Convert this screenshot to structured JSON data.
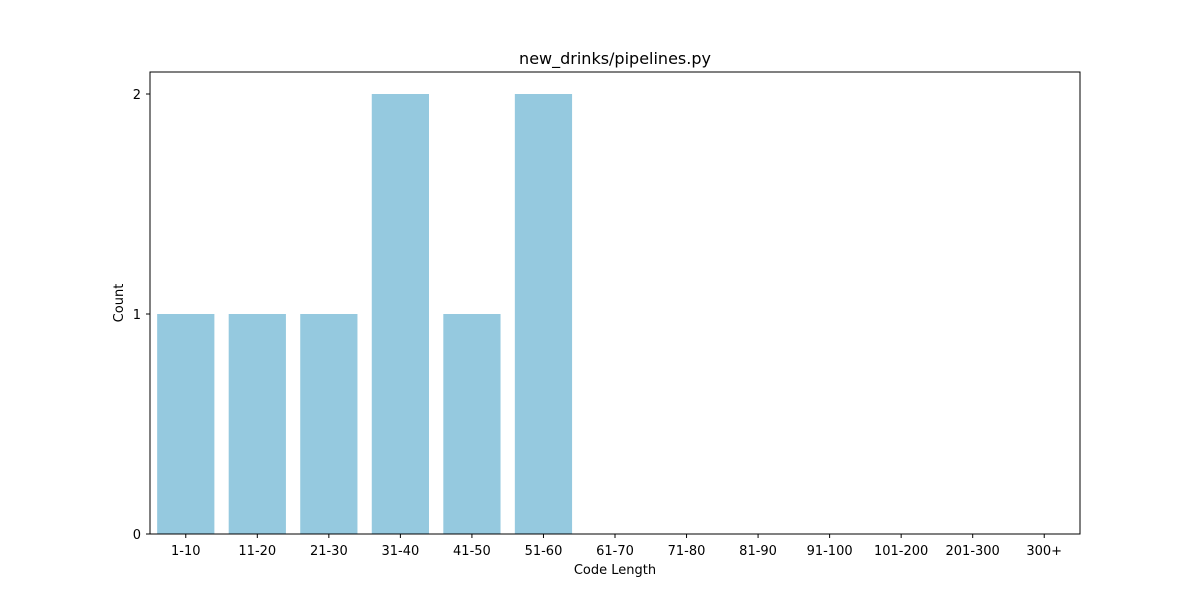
{
  "chart_data": {
    "type": "bar",
    "title": "new_drinks/pipelines.py",
    "xlabel": "Code Length",
    "ylabel": "Count",
    "categories": [
      "1-10",
      "11-20",
      "21-30",
      "31-40",
      "41-50",
      "51-60",
      "61-70",
      "71-80",
      "81-90",
      "91-100",
      "101-200",
      "201-300",
      "300+"
    ],
    "values": [
      1,
      1,
      1,
      2,
      1,
      2,
      0,
      0,
      0,
      0,
      0,
      0,
      0
    ],
    "ylim": [
      0,
      2.1
    ],
    "yticks": [
      0,
      1,
      2
    ],
    "grid": false,
    "bar_color": "#95c9df"
  }
}
